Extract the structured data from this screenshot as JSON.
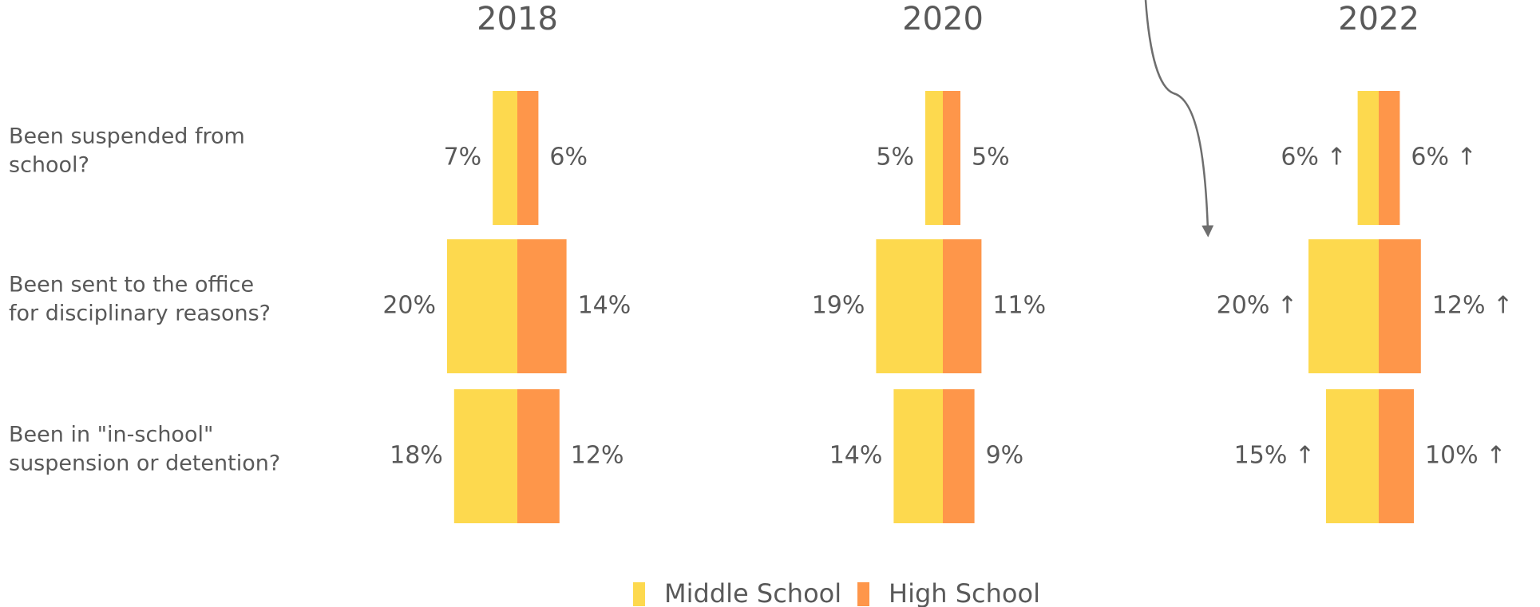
{
  "chart_data": {
    "type": "butterfly",
    "categories": [
      [
        "Been suspended from",
        "school?"
      ],
      [
        "Been sent to the office",
        "for disciplinary reasons?"
      ],
      [
        "Been in \"in-school\"",
        "suspension or detention?"
      ]
    ],
    "series": [
      {
        "name": "Middle School",
        "color": "#fdd94e"
      },
      {
        "name": "High School",
        "color": "#fe964a"
      }
    ],
    "panels": [
      {
        "title": "2018",
        "series": [
          {
            "values": [
              7,
              20,
              18
            ],
            "value_labels": [
              "7%",
              "20%",
              "18%"
            ]
          },
          {
            "values": [
              6,
              14,
              12
            ],
            "value_labels": [
              "6%",
              "14%",
              "12%"
            ]
          }
        ]
      },
      {
        "title": "2020",
        "series": [
          {
            "values": [
              5,
              19,
              14
            ],
            "value_labels": [
              "5%",
              "19%",
              "14%"
            ]
          },
          {
            "values": [
              5,
              11,
              9
            ],
            "value_labels": [
              "5%",
              "11%",
              "9%"
            ]
          }
        ]
      },
      {
        "title": "2022",
        "series": [
          {
            "values": [
              6,
              20,
              15
            ],
            "value_labels": [
              "6% ↑",
              "20% ↑",
              "15% ↑"
            ]
          },
          {
            "values": [
              6,
              12,
              10
            ],
            "value_labels": [
              "6% ↑",
              "12% ↑",
              "10% ↑"
            ]
          }
        ]
      }
    ]
  }
}
